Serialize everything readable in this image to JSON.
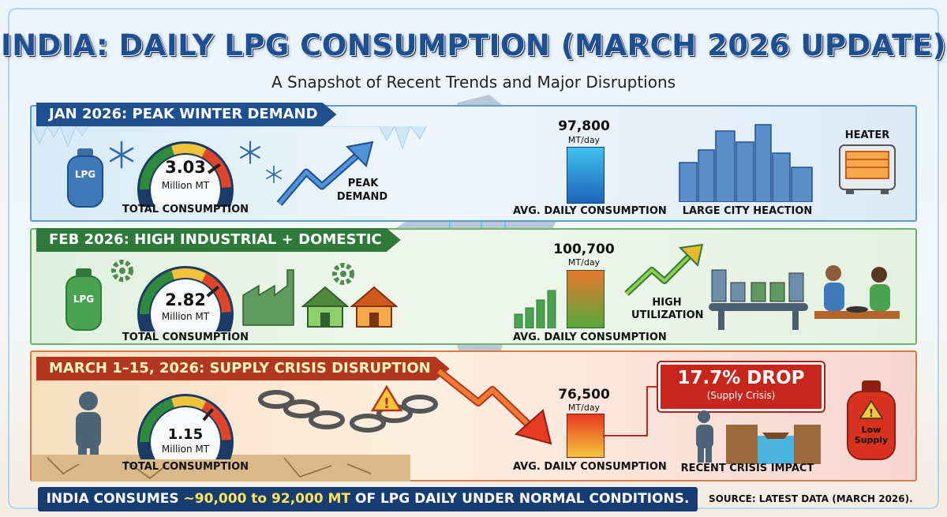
{
  "header": {
    "title": "INDIA: DAILY LPG CONSUMPTION (MARCH 2026 UPDATE)",
    "subtitle": "A Snapshot of Recent Trends and Major Disruptions"
  },
  "sections": [
    {
      "tag": "JAN 2026: PEAK WINTER DEMAND",
      "cylinder_label": "LPG",
      "gauge_value": "3.03",
      "gauge_unit": "Million MT",
      "gauge_fraction": 0.8,
      "total_label": "TOTAL CONSUMPTION",
      "trend_label_1": "PEAK",
      "trend_label_2": "DEMAND",
      "daily_value": "97,800",
      "daily_unit": "MT/day",
      "daily_label": "AVG. DAILY CONSUMPTION",
      "city_label": "LARGE CITY HEACTION",
      "heater_label": "HEATER",
      "color": "#1e4f8f"
    },
    {
      "tag": "FEB 2026: HIGH INDUSTRIAL + DOMESTIC",
      "cylinder_label": "LPG",
      "gauge_value": "2.82",
      "gauge_unit": "Million MT",
      "gauge_fraction": 0.78,
      "total_label": "TOTAL CONSUMPTION",
      "daily_value": "100,700",
      "daily_unit": "MT/day",
      "daily_label": "AVG. DAILY CONSUMPTION",
      "util_label_1": "HIGH",
      "util_label_2": "UTILIZATION",
      "color": "#2f7a3a"
    },
    {
      "tag": "MARCH 1–15, 2026: SUPPLY CRISIS DISRUPTION",
      "gauge_value": "1.15",
      "gauge_unit": "Million MT",
      "gauge_fraction": 0.72,
      "total_label": "TOTAL CONSUMPTION",
      "daily_value": "76,500",
      "daily_unit": "MT/day",
      "daily_label": "AVG. DAILY CONSUMPTION",
      "drop_value": "17.7% DROP",
      "drop_note": "(Supply Crisis)",
      "impact_label": "RECENT CRISIS IMPACT",
      "cylinder_label": "Low Supply",
      "color": "#b3371f"
    }
  ],
  "footer": {
    "text_1": "INDIA CONSUMES ",
    "text_highlight": "~90,000 to 92,000 MT",
    "text_2": " OF LPG DAILY UNDER NORMAL CONDITIONS.",
    "source": "SOURCE: LATEST DATA (MARCH 2026)."
  },
  "colors": {
    "title": "#1f4f93",
    "jan_band": "#5b9bd5",
    "feb_band": "#6fb26f",
    "mar_band": "#d97a4a",
    "drop_box": "#c8261d",
    "footer_bg": "#173c72"
  }
}
